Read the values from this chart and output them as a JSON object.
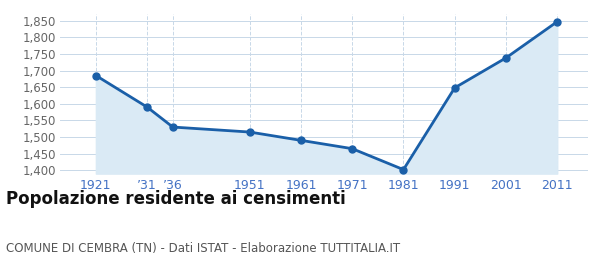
{
  "years": [
    1921,
    1931,
    1936,
    1951,
    1961,
    1971,
    1981,
    1991,
    2001,
    2011
  ],
  "population": [
    1685,
    1590,
    1530,
    1515,
    1490,
    1465,
    1402,
    1648,
    1738,
    1847
  ],
  "x_labels": [
    "1921",
    "’31",
    "’36",
    "1951",
    "1961",
    "1971",
    "1981",
    "1991",
    "2001",
    "2011"
  ],
  "ylim": [
    1390,
    1870
  ],
  "yticks": [
    1400,
    1450,
    1500,
    1550,
    1600,
    1650,
    1700,
    1750,
    1800,
    1850
  ],
  "line_color": "#1a5fa8",
  "fill_color": "#daeaf5",
  "marker_color": "#1a5fa8",
  "grid_color_h": "#c8d8e8",
  "grid_color_v": "#c8d8e8",
  "background_color": "#ffffff",
  "xtick_color": "#4472c4",
  "ytick_color": "#666666",
  "title": "Popolazione residente ai censimenti",
  "subtitle": "COMUNE DI CEMBRA (TN) - Dati ISTAT - Elaborazione TUTTITALIA.IT",
  "title_fontsize": 12,
  "subtitle_fontsize": 8.5
}
